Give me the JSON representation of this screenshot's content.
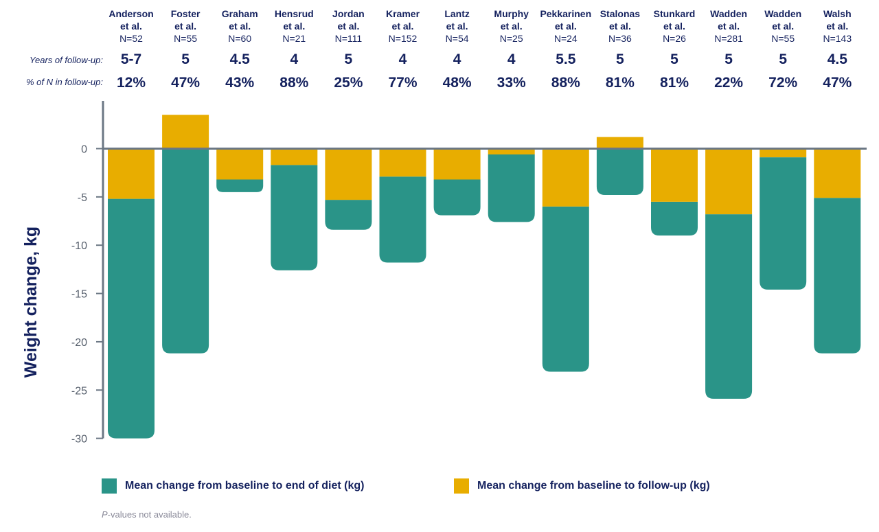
{
  "chart_data": {
    "type": "bar",
    "ylabel": "Weight change, kg",
    "ylim": [
      -30,
      5
    ],
    "yticks": [
      0,
      -5,
      -10,
      -15,
      -20,
      -25,
      -30
    ],
    "row_labels": {
      "years": "Years of follow-up:",
      "pct": "% of N in follow-up:"
    },
    "studies": [
      {
        "name1": "Anderson",
        "name2": "et al.",
        "n": "N=52",
        "years": "5-7",
        "pct": "12%",
        "end_of_diet": -30.0,
        "follow_up": -5.2
      },
      {
        "name1": "Foster",
        "name2": "et al.",
        "n": "N=55",
        "years": "5",
        "pct": "47%",
        "end_of_diet": -21.2,
        "follow_up": 3.5
      },
      {
        "name1": "Graham",
        "name2": "et al.",
        "n": "N=60",
        "years": "4.5",
        "pct": "43%",
        "end_of_diet": -4.5,
        "follow_up": -3.2
      },
      {
        "name1": "Hensrud",
        "name2": "et al.",
        "n": "N=21",
        "years": "4",
        "pct": "88%",
        "end_of_diet": -12.6,
        "follow_up": -1.7
      },
      {
        "name1": "Jordan",
        "name2": "et al.",
        "n": "N=111",
        "years": "5",
        "pct": "25%",
        "end_of_diet": -8.4,
        "follow_up": -5.3
      },
      {
        "name1": "Kramer",
        "name2": "et al.",
        "n": "N=152",
        "years": "4",
        "pct": "77%",
        "end_of_diet": -11.8,
        "follow_up": -2.9
      },
      {
        "name1": "Lantz",
        "name2": "et al.",
        "n": "N=54",
        "years": "4",
        "pct": "48%",
        "end_of_diet": -6.9,
        "follow_up": -3.2
      },
      {
        "name1": "Murphy",
        "name2": "et al.",
        "n": "N=25",
        "years": "4",
        "pct": "33%",
        "end_of_diet": -7.6,
        "follow_up": -0.6
      },
      {
        "name1": "Pekkarinen",
        "name2": "et al.",
        "n": "N=24",
        "years": "5.5",
        "pct": "88%",
        "end_of_diet": -23.1,
        "follow_up": -6.0
      },
      {
        "name1": "Stalonas",
        "name2": "et al.",
        "n": "N=36",
        "years": "5",
        "pct": "81%",
        "end_of_diet": -4.8,
        "follow_up": 1.2
      },
      {
        "name1": "Stunkard",
        "name2": "et al.",
        "n": "N=26",
        "years": "5",
        "pct": "81%",
        "end_of_diet": -9.0,
        "follow_up": -5.5
      },
      {
        "name1": "Wadden",
        "name2": "et al.",
        "n": "N=281",
        "years": "5",
        "pct": "22%",
        "end_of_diet": -25.9,
        "follow_up": -6.8
      },
      {
        "name1": "Wadden",
        "name2": "et al.",
        "n": "N=55",
        "years": "5",
        "pct": "72%",
        "end_of_diet": -14.6,
        "follow_up": -0.9
      },
      {
        "name1": "Walsh",
        "name2": "et al.",
        "n": "N=143",
        "years": "4.5",
        "pct": "47%",
        "end_of_diet": -21.2,
        "follow_up": -5.1
      }
    ],
    "series": [
      {
        "name": "Mean change from baseline to end of diet (kg)",
        "color": "#2a9488"
      },
      {
        "name": "Mean change from baseline to follow-up (kg)",
        "color": "#e8ad00"
      }
    ],
    "grid": false,
    "legend_position": "bottom"
  },
  "footnote": {
    "italic": "P",
    "rest": "-values not available."
  }
}
